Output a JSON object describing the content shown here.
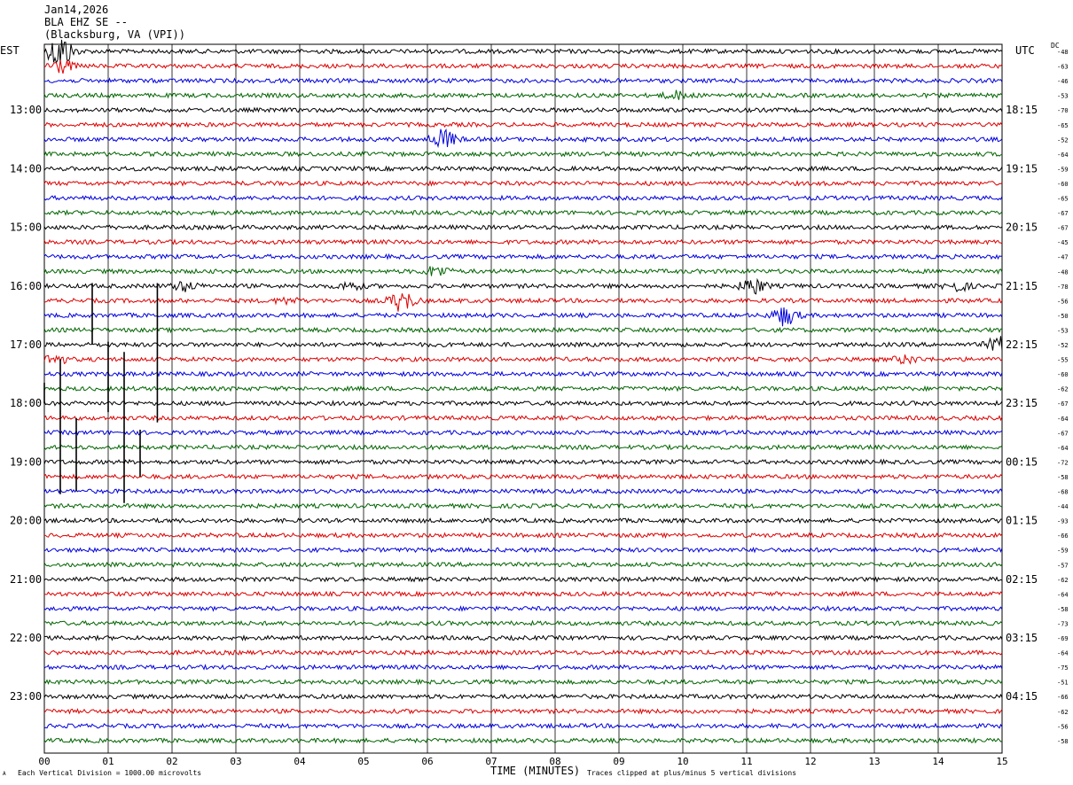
{
  "header": {
    "date": "Jan14,2026",
    "station": "BLA EHZ SE --",
    "location": "(Blacksburg, VA (VPI))"
  },
  "left_tz": "EST",
  "right_tz": "UTC",
  "dc_label": "DC",
  "footer": {
    "scale_note": "Each Vertical Division = 1000.00 microvolts",
    "clip_note": "Traces clipped at plus/minus 5 vertical divisions",
    "small_mark": "A"
  },
  "colors": {
    "cycle": [
      "#000000",
      "#dd0000",
      "#0000dd",
      "#006400"
    ],
    "grid": "#000000"
  },
  "chart_data": {
    "type": "line",
    "title": "",
    "xlabel": "TIME (MINUTES)",
    "x_ticks": [
      "00",
      "01",
      "02",
      "03",
      "04",
      "05",
      "06",
      "07",
      "08",
      "09",
      "10",
      "11",
      "12",
      "13",
      "14",
      "15"
    ],
    "xlim": [
      0,
      15
    ],
    "left_hour_labels": [
      "13:00",
      "14:00",
      "15:00",
      "16:00",
      "17:00",
      "18:00",
      "19:00",
      "20:00",
      "21:00",
      "22:00",
      "23:00"
    ],
    "right_hour_labels": [
      "18:15",
      "19:15",
      "20:15",
      "21:15",
      "22:15",
      "23:15",
      "00:15",
      "01:15",
      "02:15",
      "03:15",
      "04:15"
    ],
    "trace_minutes": 15,
    "dc_offsets": [
      -48,
      -63,
      -46,
      -53,
      -70,
      -65,
      -52,
      -64,
      -59,
      -60,
      -65,
      -67,
      -67,
      -45,
      -47,
      -48,
      -78,
      -56,
      -50,
      -53,
      -52,
      -55,
      -60,
      -62,
      -67,
      -64,
      -67,
      -64,
      -72,
      -58,
      -68,
      -44,
      -93,
      -66,
      -59,
      -57,
      -62,
      -64,
      -58,
      -73,
      -69,
      -64,
      -75,
      -51,
      -66,
      -62,
      -56,
      -58
    ],
    "events": [
      {
        "trace": 0,
        "minute": 0.25,
        "amp": 1.0
      },
      {
        "trace": 1,
        "minute": 0.25,
        "amp": 0.4
      },
      {
        "trace": 3,
        "minute": 9.9,
        "amp": 0.2
      },
      {
        "trace": 6,
        "minute": 6.25,
        "amp": 0.55
      },
      {
        "trace": 15,
        "minute": 6.15,
        "amp": 0.3
      },
      {
        "trace": 16,
        "minute": 2.2,
        "amp": 0.25
      },
      {
        "trace": 16,
        "minute": 4.8,
        "amp": 0.2
      },
      {
        "trace": 16,
        "minute": 11.1,
        "amp": 0.45
      },
      {
        "trace": 16,
        "minute": 14.3,
        "amp": 0.25
      },
      {
        "trace": 17,
        "minute": 5.6,
        "amp": 0.6
      },
      {
        "trace": 17,
        "minute": 3.8,
        "amp": 0.15
      },
      {
        "trace": 18,
        "minute": 11.6,
        "amp": 0.55
      },
      {
        "trace": 20,
        "minute": 14.95,
        "amp": 0.4
      },
      {
        "trace": 21,
        "minute": 0.15,
        "amp": 0.3
      },
      {
        "trace": 21,
        "minute": 13.5,
        "amp": 0.2
      }
    ],
    "spikes": [
      {
        "trace": 24,
        "minute": 0.0,
        "from": 0.0,
        "to": 1.4
      },
      {
        "trace": 20,
        "minute": 0.75,
        "from": 4.2,
        "to": 0.0
      },
      {
        "trace": 21,
        "minute": 1.0,
        "from": 1.2,
        "to": -3.6
      },
      {
        "trace": 20,
        "minute": 1.77,
        "from": 4.2,
        "to": -5.3
      },
      {
        "trace": 25,
        "minute": 0.25,
        "from": 4.0,
        "to": -5.2
      },
      {
        "trace": 25,
        "minute": 0.5,
        "from": 0.0,
        "to": -5.0
      },
      {
        "trace": 26,
        "minute": 1.25,
        "from": 5.5,
        "to": -4.8
      },
      {
        "trace": 26,
        "minute": 1.5,
        "from": 0.2,
        "to": -3.0
      }
    ]
  }
}
